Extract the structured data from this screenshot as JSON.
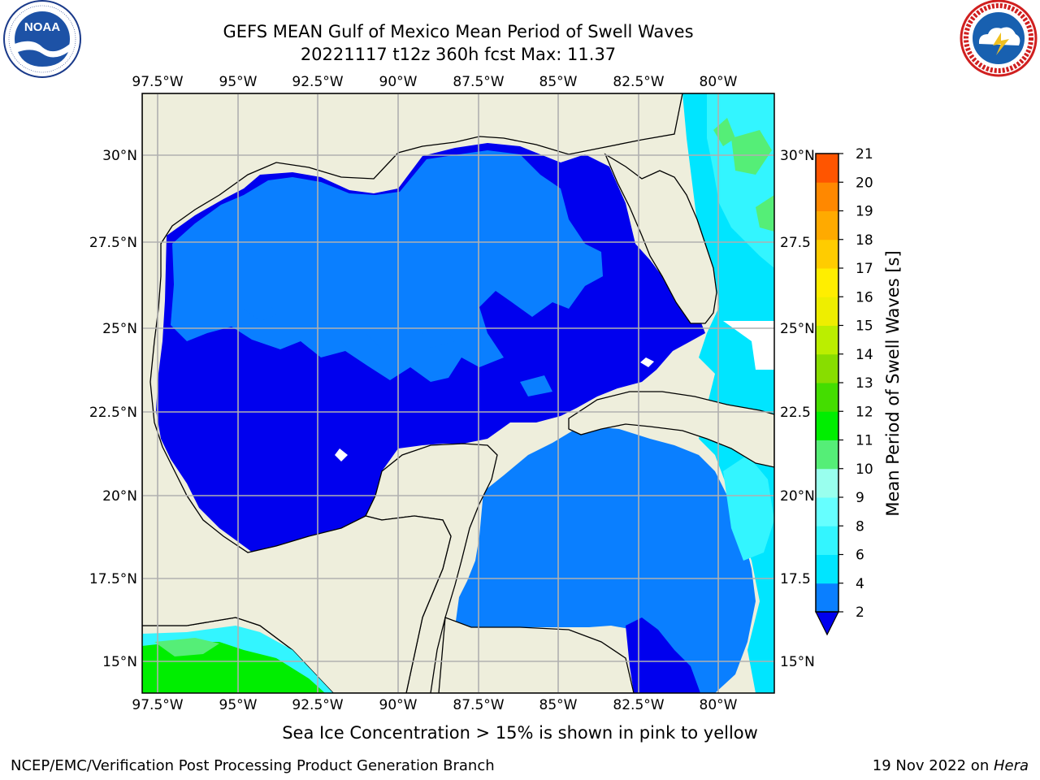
{
  "header": {
    "title_line1": "GEFS MEAN Gulf of Mexico Mean Period of Swell Waves",
    "title_line2": "20221117 t12z 360h fcst   Max: 11.37"
  },
  "logos": {
    "left": {
      "name": "noaa-logo",
      "text": "NOAA",
      "ring_text": "NATIONAL OCEANIC AND ATMOSPHERIC ADMINISTRATION · U.S. DEPARTMENT OF COMMERCE"
    },
    "right": {
      "name": "national-weather-service-logo",
      "ring_text": "NATIONAL WEATHER SERVICE"
    }
  },
  "map": {
    "extent": {
      "lon": [
        -98.0,
        -78.3
      ],
      "lat": [
        14.0,
        32.0
      ]
    },
    "lon_ticks": [
      "97.5°W",
      "95°W",
      "92.5°W",
      "90°W",
      "87.5°W",
      "85°W",
      "82.5°W",
      "80°W"
    ],
    "lat_ticks_left": [
      "15°N",
      "17.5°N",
      "20°N",
      "22.5°N",
      "25°N",
      "27.5°N",
      "30°N"
    ],
    "lat_ticks_right": [
      "15°N",
      "17.5",
      "20°N",
      "22.5",
      "25°N",
      "27.5",
      "30°N"
    ],
    "land_color": "#eeeedc",
    "grid_color": "#b0b0b0"
  },
  "colorbar": {
    "label": "Mean Period of Swell Waves [s]",
    "ticks": [
      "2",
      "4",
      "6",
      "8",
      "9",
      "10",
      "11",
      "12",
      "13",
      "14",
      "15",
      "16",
      "17",
      "18",
      "19",
      "20",
      "21"
    ],
    "colors": [
      "#0a7fff",
      "#00e5ff",
      "#33f5ff",
      "#66ffff",
      "#99ffee",
      "#55ee77",
      "#00ee00",
      "#44dd00",
      "#88dd00",
      "#bbee00",
      "#eeee00",
      "#ffee00",
      "#ffcc00",
      "#ffaa00",
      "#ff8800",
      "#ff5500",
      "#ff2200",
      "#ff0000"
    ],
    "under_color": "#0000ee"
  },
  "footer": {
    "ice_note": "Sea Ice Concentration > 15% is shown in pink to yellow",
    "credit": "NCEP/EMC/Verification Post Processing Product Generation Branch",
    "date_prefix": "19 Nov 2022 on ",
    "host": "Hera"
  }
}
